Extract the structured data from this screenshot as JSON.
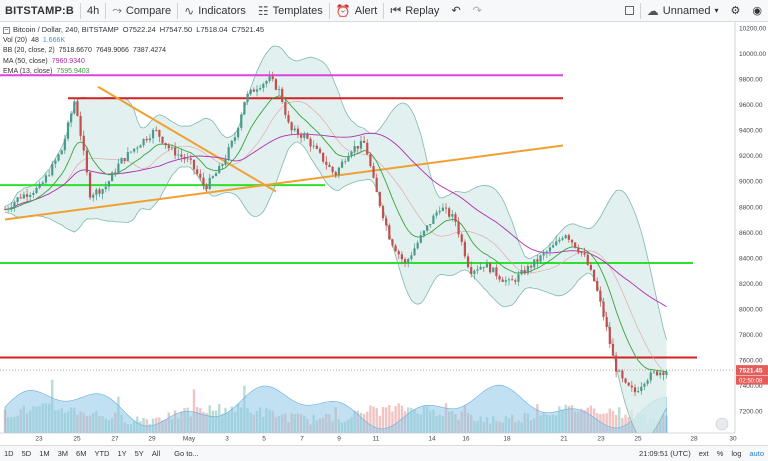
{
  "toolbar": {
    "symbol": "BITSTAMP:B",
    "interval": "4h",
    "compare": "Compare",
    "indicators": "Indicators",
    "templates": "Templates",
    "alert": "Alert",
    "replay": "Replay",
    "layout_name": "Unnamed"
  },
  "legend": {
    "title": "Bitcoin / Dollar, 240, BITSTAMP",
    "open": "O7522.24",
    "high": "H7547.50",
    "low": "L7518.04",
    "close": "C7521.45",
    "vol_label": "Vol (20)",
    "vol_val1": "48",
    "vol_val2": "1.666K",
    "bb_label": "BB (20, close, 2)",
    "bb_vals": [
      "7518.6670",
      "7649.9066",
      "7387.4274"
    ],
    "ma_label": "MA (50, close)",
    "ma_val": "7960.9340",
    "ema_label": "EMA (13, close)",
    "ema_val": "7595.9403"
  },
  "price_axis": {
    "ticks": [
      "10200.00",
      "10000.00",
      "9800.00",
      "9600.00",
      "9400.00",
      "9200.00",
      "9000.00",
      "8800.00",
      "8600.00",
      "8400.00",
      "8200.00",
      "8000.00",
      "7800.00",
      "7600.00",
      "7400.00",
      "7200.00"
    ],
    "last_price": "7521.45",
    "countdown": "02:50:08"
  },
  "time_axis": {
    "labels": [
      "23",
      "25",
      "27",
      "29",
      "May",
      "3",
      "5",
      "7",
      "9",
      "11",
      "14",
      "16",
      "18",
      "21",
      "23",
      "25",
      "28",
      "30"
    ]
  },
  "bottom": {
    "ranges": [
      "1D",
      "5D",
      "1M",
      "3M",
      "6M",
      "YTD",
      "1Y",
      "5Y",
      "All"
    ],
    "goto": "Go to...",
    "clock": "21:09:51 (UTC)",
    "options": [
      "ext",
      "%",
      "log",
      "auto"
    ]
  },
  "colors": {
    "up": "#4a9a8a",
    "down": "#c0504d",
    "bb_fill": "#d8ece9",
    "bb_line": "#7fb8b0",
    "ma": "#b02cb0",
    "ema": "#3aa33a",
    "magenta_line": "#e040e0",
    "red_line": "#d42020",
    "green_line": "#2ee02e",
    "orange_line": "#f0a030"
  }
}
